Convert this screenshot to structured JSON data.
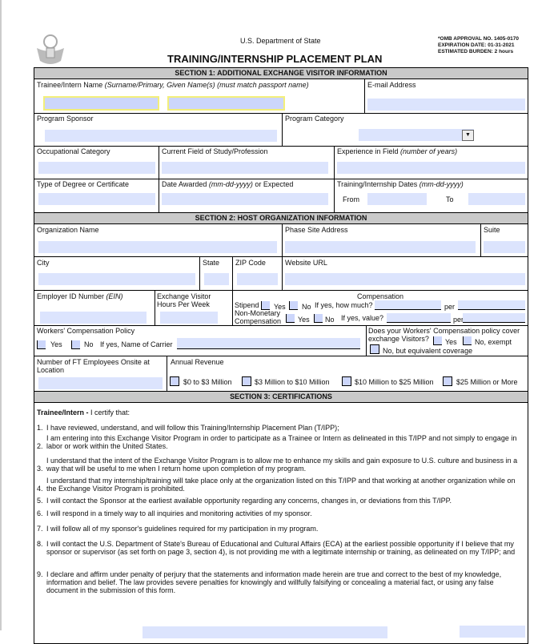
{
  "header": {
    "department": "U.S. Department of State",
    "title": "TRAINING/INTERNSHIP PLACEMENT PLAN",
    "omb": "*OMB APPROVAL NO.  1405-0170",
    "expiration": "EXPIRATION DATE: 01-31-2021",
    "burden": "ESTIMATED BURDEN:  2 hours",
    "seal_icon": "us-great-seal"
  },
  "section1": {
    "title": "SECTION 1: ADDITIONAL EXCHANGE VISITOR INFORMATION",
    "name_label": "Trainee/Intern Name ",
    "name_hint": "(Surname/Primary, Given Name(s) (must match passport name)",
    "email_label": "E-mail Address",
    "sponsor_label": "Program Sponsor",
    "category_label": "Program Category",
    "occupational_label": "Occupational Category",
    "field_label": "Current Field of Study/Profession",
    "experience_label": "Experience in Field ",
    "experience_hint": "(number of years)",
    "degree_label": "Type of Degree or Certificate",
    "date_awarded_label": "Date Awarded ",
    "date_awarded_hint": "(mm-dd-yyyy)",
    "date_awarded_suffix": " or Expected",
    "dates_label": "Training/Internship Dates ",
    "dates_hint": "(mm-dd-yyyy)",
    "from_label": "From",
    "to_label": "To"
  },
  "section2": {
    "title": "SECTION 2: HOST ORGANIZATION INFORMATION",
    "org_label": "Organization Name",
    "site_label": "Phase Site Address",
    "suite_label": "Suite",
    "city_label": "City",
    "state_label": "State",
    "zip_label": "ZIP Code",
    "website_label": "Website URL",
    "ein_label": "Employer ID Number ",
    "ein_hint": "(EIN)",
    "hours_label1": "Exchange Visitor",
    "hours_label2": "Hours Per Week",
    "comp_label": "Compensation",
    "stipend_label": "Stipend",
    "yes": "Yes",
    "no": "No",
    "how_much": "If yes, how much?",
    "per": "per",
    "nonmon1": "Non-Monetary",
    "nonmon2": "Compensation",
    "value_label": "If yes, value?",
    "wc_label": "Workers' Compensation Policy",
    "carrier_label": "If yes, Name of Carrier",
    "wc_cover1": "Does your Workers' Compensation policy cover",
    "wc_cover2": "exchange Visitors?",
    "no_exempt": "No, exempt",
    "no_equiv": "No, but equivalent coverage",
    "ft_label1": "Number of FT Employees Onsite at",
    "ft_label2": "Location",
    "revenue_label": "Annual Revenue",
    "revenue_options": [
      "$0 to $3 Million",
      "$3 Million to $10 Million",
      "$10 Million to $25 Million",
      "$25 Million or More"
    ]
  },
  "section3": {
    "title": "SECTION 3: CERTIFICATIONS",
    "intro_bold": "Trainee/Intern - ",
    "intro": " I certify that:",
    "items": [
      "I have reviewed, understand, and will follow this Training/Internship Placement Plan (T/IPP);",
      "I am entering into this Exchange Visitor Program in order to participate as a Trainee or Intern as delineated in this T/IPP and not simply to engage in labor or work within the United States.",
      "I understand that the intent of the Exchange Visitor Program is to allow me to enhance my skills and gain exposure to U.S. culture and business in a way that will be useful to me when I return home upon completion of my program.",
      "I understand that my internship/training will take place only at the organization listed on this T/IPP and that working at another organization while on the Exchange Visitor Program is prohibited.",
      "I will contact the Sponsor at the earliest available opportunity regarding any concerns, changes in, or deviations from this T/IPP.",
      "I will respond in a timely way to all inquiries and monitoring activities of my sponsor.",
      "I will follow all of my sponsor's guidelines required for my participation in my program.",
      "I will contact the U.S. Department of State's Bureau of Educational and Cultural Affairs (ECA) at the earliest possible opportunity if I believe that my sponsor or supervisor (as set forth on page 3, section 4), is not providing me with a legitimate internship or training, as delineated on my T/IPP; and",
      "I declare and affirm under penalty of perjury that the statements and information made herein are true and correct to the best of my knowledge, information and belief.  The law provides severe penalties for knowingly and willfully falsifying or concealing a material fact, or using any false document in the submission of this form."
    ]
  },
  "colors": {
    "field": "#dce4fd",
    "section_header": "#c9c9c9",
    "highlight_border": "#f3ef7a"
  }
}
